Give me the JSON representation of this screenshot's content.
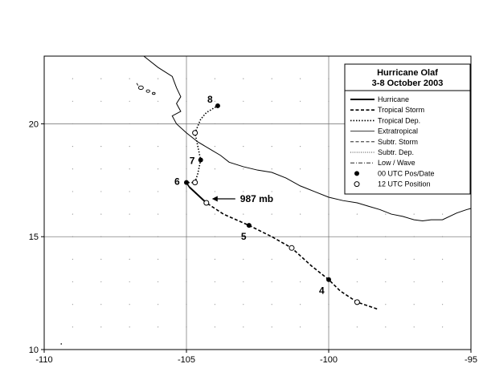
{
  "legend": {
    "title": "Hurricane Olaf",
    "subtitle": "3-8 October 2003",
    "items": [
      {
        "label": "Hurricane",
        "style": "hurricane"
      },
      {
        "label": "Tropical Storm",
        "style": "tropical-storm"
      },
      {
        "label": "Tropical Dep.",
        "style": "tropical-dep"
      },
      {
        "label": "Extratropical",
        "style": "extratropical"
      },
      {
        "label": "Subtr. Storm",
        "style": "subtr-storm"
      },
      {
        "label": "Subtr. Dep.",
        "style": "subtr-dep"
      },
      {
        "label": "Low / Wave",
        "style": "low-wave"
      },
      {
        "label": "00 UTC Pos/Date",
        "style": "filled-dot"
      },
      {
        "label": "12 UTC Position",
        "style": "open-dot"
      }
    ]
  },
  "annotation": {
    "text": "987 mb",
    "lon": -104.3,
    "lat": 16.5
  },
  "chart_data": {
    "type": "map-track",
    "xlim": [
      -110,
      -95
    ],
    "ylim": [
      10,
      23
    ],
    "x_ticks": [
      -110,
      -105,
      -100,
      -95
    ],
    "x_tick_labels": [
      "-110",
      "-105",
      "-100",
      "-95"
    ],
    "y_ticks": [
      10,
      15,
      20
    ],
    "y_tick_labels": [
      "10",
      "15",
      "20"
    ],
    "grid": true,
    "colors": {
      "track": "#000000",
      "coast": "#000000",
      "grid": "#808080"
    },
    "track_segments": [
      {
        "style": "tropical-storm",
        "points": [
          [
            -98.3,
            11.8
          ],
          [
            -99.0,
            12.1
          ],
          [
            -99.6,
            12.6
          ],
          [
            -100.0,
            13.1
          ],
          [
            -100.6,
            13.7
          ],
          [
            -101.3,
            14.5
          ],
          [
            -102.0,
            15.0
          ],
          [
            -102.8,
            15.5
          ],
          [
            -103.7,
            16.0
          ],
          [
            -104.3,
            16.5
          ]
        ]
      },
      {
        "style": "hurricane",
        "points": [
          [
            -104.3,
            16.5
          ],
          [
            -104.9,
            17.2
          ]
        ]
      },
      {
        "style": "tropical-storm",
        "points": [
          [
            -104.9,
            17.2
          ],
          [
            -105.0,
            17.4
          ],
          [
            -104.7,
            17.4
          ]
        ]
      },
      {
        "style": "tropical-dep",
        "points": [
          [
            -104.7,
            17.4
          ],
          [
            -104.6,
            17.8
          ],
          [
            -104.5,
            18.4
          ],
          [
            -104.6,
            19.0
          ],
          [
            -104.7,
            19.6
          ],
          [
            -104.5,
            20.2
          ],
          [
            -104.3,
            20.5
          ],
          [
            -103.9,
            20.8
          ]
        ]
      }
    ],
    "positions": [
      {
        "lon": -100.0,
        "lat": 13.1,
        "type": "00 UTC",
        "label": "4"
      },
      {
        "lon": -102.8,
        "lat": 15.5,
        "type": "00 UTC",
        "label": "5"
      },
      {
        "lon": -105.0,
        "lat": 17.4,
        "type": "00 UTC",
        "label": "6"
      },
      {
        "lon": -104.5,
        "lat": 18.4,
        "type": "00 UTC",
        "label": "7"
      },
      {
        "lon": -103.9,
        "lat": 20.8,
        "type": "00 UTC",
        "label": "8"
      },
      {
        "lon": -99.0,
        "lat": 12.1,
        "type": "12 UTC",
        "label": ""
      },
      {
        "lon": -101.3,
        "lat": 14.5,
        "type": "12 UTC",
        "label": ""
      },
      {
        "lon": -104.3,
        "lat": 16.5,
        "type": "12 UTC",
        "label": ""
      },
      {
        "lon": -104.7,
        "lat": 17.4,
        "type": "12 UTC",
        "label": ""
      },
      {
        "lon": -104.7,
        "lat": 19.6,
        "type": "12 UTC",
        "label": ""
      }
    ]
  }
}
